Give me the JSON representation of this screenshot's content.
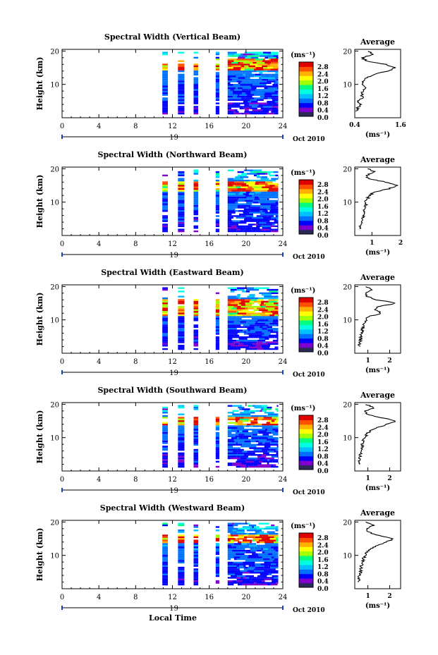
{
  "figure": {
    "xlabel": "Local Time",
    "date_label": "Oct 2010",
    "day_label": "19",
    "ylabel": "Height (km)",
    "unit_label": "(ms⁻¹)",
    "avg_title": "Average",
    "avg_unit": "(ms⁻¹)",
    "colorbar_ticks": [
      "0.0",
      "0.4",
      "0.8",
      "1.2",
      "1.6",
      "2.0",
      "2.4",
      "2.8"
    ],
    "colorbar_range": [
      0,
      3.0
    ],
    "colors": {
      "scale": [
        "#2a2a5a",
        "#8000d0",
        "#0000ff",
        "#0070ff",
        "#00c0ff",
        "#00ffe0",
        "#00ff80",
        "#a0ff00",
        "#ffff00",
        "#ffb000",
        "#ff5000",
        "#e00000"
      ],
      "line": "#000000",
      "frame": "#000000"
    }
  },
  "chart_data": [
    {
      "type": "heatmap",
      "title": "Spectral Width (Vertical Beam)",
      "xlim": [
        0,
        24
      ],
      "xticks": [
        0,
        4,
        8,
        12,
        16,
        20,
        24
      ],
      "ylim": [
        0,
        20.5
      ],
      "yticks": [
        10,
        20
      ],
      "data_segments_hours": [
        [
          10.9,
          11.5
        ],
        [
          12.6,
          13.3
        ],
        [
          14.3,
          14.8
        ],
        [
          16.7,
          17.1
        ],
        [
          18.0,
          23.5
        ]
      ],
      "peak_height_km": [
        14.5,
        18.8
      ],
      "profile": {
        "xlim": [
          0.4,
          1.6
        ],
        "xticks": [
          0.4,
          1.6
        ],
        "xticklabels": [
          "0.4",
          "1.6"
        ],
        "heights": [
          2,
          3,
          4,
          5,
          6,
          7,
          8,
          9,
          10,
          11,
          12,
          13,
          14,
          15,
          16,
          17,
          18,
          19,
          20
        ],
        "values": [
          0.45,
          0.48,
          0.55,
          0.5,
          0.6,
          0.58,
          0.62,
          0.65,
          0.6,
          0.62,
          0.7,
          0.9,
          1.3,
          1.45,
          1.2,
          0.7,
          0.6,
          0.9,
          0.75
        ]
      }
    },
    {
      "type": "heatmap",
      "title": "Spectral Width (Northward Beam)",
      "xlim": [
        0,
        24
      ],
      "xticks": [
        0,
        4,
        8,
        12,
        16,
        20,
        24
      ],
      "ylim": [
        0,
        20.5
      ],
      "yticks": [
        10,
        20
      ],
      "data_segments_hours": [
        [
          10.9,
          11.5
        ],
        [
          12.6,
          13.3
        ],
        [
          14.3,
          14.8
        ],
        [
          16.7,
          17.1
        ],
        [
          18.0,
          23.5
        ]
      ],
      "peak_height_km": [
        13.5,
        15.5
      ],
      "profile": {
        "xlim": [
          0.4,
          2.0
        ],
        "xticks": [
          1,
          2
        ],
        "xticklabels": [
          "1",
          "2"
        ],
        "heights": [
          2,
          3,
          4,
          5,
          6,
          7,
          8,
          9,
          10,
          11,
          12,
          13,
          14,
          15,
          16,
          17,
          18,
          19,
          20
        ],
        "values": [
          0.55,
          0.6,
          0.62,
          0.68,
          0.7,
          0.75,
          0.72,
          0.8,
          0.78,
          0.85,
          0.9,
          1.1,
          1.6,
          1.9,
          1.5,
          0.9,
          0.8,
          1.1,
          0.85
        ]
      }
    },
    {
      "type": "heatmap",
      "title": "Spectral Width (Eastward Beam)",
      "xlim": [
        0,
        24
      ],
      "xticks": [
        0,
        4,
        8,
        12,
        16,
        20,
        24
      ],
      "ylim": [
        0,
        20.5
      ],
      "yticks": [
        10,
        20
      ],
      "data_segments_hours": [
        [
          10.9,
          11.5
        ],
        [
          12.6,
          13.3
        ],
        [
          14.3,
          14.8
        ],
        [
          16.7,
          17.1
        ],
        [
          18.0,
          23.5
        ]
      ],
      "peak_height_km": [
        11.5,
        15.5
      ],
      "profile": {
        "xlim": [
          0.4,
          2.5
        ],
        "xticks": [
          1,
          2
        ],
        "xticklabels": [
          "1",
          "2"
        ],
        "heights": [
          2,
          3,
          4,
          5,
          6,
          7,
          8,
          9,
          10,
          11,
          12,
          13,
          14,
          15,
          16,
          17,
          18,
          19,
          20
        ],
        "values": [
          0.6,
          0.62,
          0.65,
          0.7,
          0.72,
          0.75,
          0.8,
          0.85,
          0.9,
          1.05,
          1.6,
          1.35,
          1.5,
          2.3,
          1.4,
          1.0,
          0.9,
          1.2,
          0.9
        ]
      }
    },
    {
      "type": "heatmap",
      "title": "Spectral Width (Southward Beam)",
      "xlim": [
        0,
        24
      ],
      "xticks": [
        0,
        4,
        8,
        12,
        16,
        20,
        24
      ],
      "ylim": [
        0,
        20.5
      ],
      "yticks": [
        10,
        20
      ],
      "data_segments_hours": [
        [
          10.9,
          11.5
        ],
        [
          12.6,
          13.3
        ],
        [
          14.3,
          14.8
        ],
        [
          16.7,
          17.1
        ],
        [
          18.0,
          23.5
        ]
      ],
      "peak_height_km": [
        14.0,
        15.5
      ],
      "profile": {
        "xlim": [
          0.4,
          2.5
        ],
        "xticks": [
          1,
          2
        ],
        "xticklabels": [
          "1",
          "2"
        ],
        "heights": [
          2,
          3,
          4,
          5,
          6,
          7,
          8,
          9,
          10,
          11,
          12,
          13,
          14,
          15,
          16,
          17,
          18,
          19,
          20
        ],
        "values": [
          0.55,
          0.6,
          0.62,
          0.65,
          0.7,
          0.72,
          0.75,
          0.8,
          0.85,
          0.95,
          1.1,
          1.4,
          1.9,
          2.3,
          1.6,
          1.0,
          0.9,
          1.3,
          0.9
        ]
      }
    },
    {
      "type": "heatmap",
      "title": "Spectral Width (Westward Beam)",
      "xlim": [
        0,
        24
      ],
      "xticks": [
        0,
        4,
        8,
        12,
        16,
        20,
        24
      ],
      "ylim": [
        0,
        20.5
      ],
      "yticks": [
        10,
        20
      ],
      "data_segments_hours": [
        [
          10.9,
          11.5
        ],
        [
          12.6,
          13.3
        ],
        [
          14.3,
          14.8
        ],
        [
          16.7,
          17.1
        ],
        [
          18.0,
          23.5
        ]
      ],
      "peak_height_km": [
        14.0,
        15.5
      ],
      "profile": {
        "xlim": [
          0.4,
          2.5
        ],
        "xticks": [
          1,
          2
        ],
        "xticklabels": [
          "1",
          "2"
        ],
        "heights": [
          2,
          3,
          4,
          5,
          6,
          7,
          8,
          9,
          10,
          11,
          12,
          13,
          14,
          15,
          16,
          17,
          18,
          19,
          20
        ],
        "values": [
          0.55,
          0.6,
          0.62,
          0.65,
          0.68,
          0.7,
          0.75,
          0.8,
          0.85,
          0.95,
          1.1,
          1.5,
          1.8,
          2.2,
          1.5,
          1.0,
          0.9,
          1.3,
          0.9
        ]
      }
    }
  ]
}
